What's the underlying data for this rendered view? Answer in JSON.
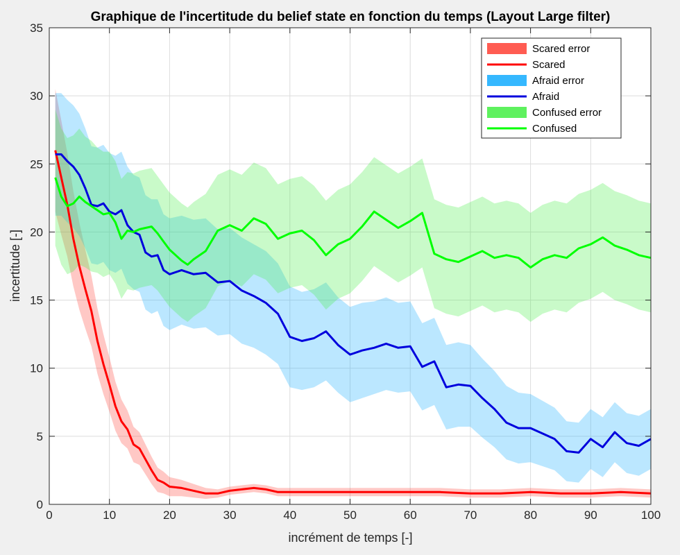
{
  "chart_data": {
    "type": "line",
    "title": "Graphique de l'incertitude du belief state en fonction du temps (Layout Large filter)",
    "xlabel": "incrément de temps [-]",
    "ylabel": "incertitude [-]",
    "xlim": [
      0,
      100
    ],
    "ylim": [
      0,
      35
    ],
    "xticks": [
      "0",
      "10",
      "20",
      "30",
      "40",
      "50",
      "60",
      "70",
      "80",
      "90",
      "100"
    ],
    "yticks": [
      "0",
      "5",
      "10",
      "15",
      "20",
      "25",
      "30",
      "35"
    ],
    "grid": true,
    "legend_position": "top-right",
    "legend": [
      "Scared error",
      "Scared",
      "Afraid error",
      "Afraid",
      "Confused error",
      "Confused"
    ],
    "series": [
      {
        "name": "Scared",
        "color": "#ff0000",
        "band_color": "#ff4a3f",
        "band_label": "Scared error",
        "x": [
          1,
          2,
          3,
          4,
          5,
          6,
          7,
          8,
          9,
          10,
          11,
          12,
          13,
          14,
          15,
          16,
          17,
          18,
          19,
          20,
          22,
          24,
          26,
          28,
          30,
          32,
          34,
          36,
          38,
          40,
          45,
          50,
          55,
          60,
          65,
          70,
          75,
          80,
          85,
          90,
          95,
          100
        ],
        "y": [
          26,
          24,
          22,
          19.5,
          17.5,
          15.8,
          14.2,
          12,
          10.3,
          8.8,
          7.2,
          6.1,
          5.5,
          4.4,
          4.1,
          3.3,
          2.5,
          1.8,
          1.6,
          1.3,
          1.2,
          1,
          0.8,
          0.8,
          1,
          1.1,
          1.2,
          1.1,
          0.9,
          0.9,
          0.9,
          0.9,
          0.9,
          0.9,
          0.9,
          0.8,
          0.8,
          0.9,
          0.8,
          0.8,
          0.9,
          0.8
        ],
        "err": [
          4.5,
          4.2,
          3.8,
          3.5,
          3.2,
          2.9,
          2.6,
          2.4,
          2.2,
          2,
          1.8,
          1.6,
          1.4,
          1.3,
          1.2,
          1.1,
          1,
          0.9,
          0.8,
          0.7,
          0.6,
          0.5,
          0.4,
          0.3,
          0.3,
          0.3,
          0.3,
          0.3,
          0.3,
          0.3,
          0.3,
          0.3,
          0.3,
          0.3,
          0.3,
          0.3,
          0.3,
          0.3,
          0.3,
          0.3,
          0.3,
          0.3
        ]
      },
      {
        "name": "Afraid",
        "color": "#0000dd",
        "band_color": "#1fb0ff",
        "band_label": "Afraid error",
        "x": [
          1,
          2,
          3,
          4,
          5,
          6,
          7,
          8,
          9,
          10,
          11,
          12,
          13,
          14,
          15,
          16,
          17,
          18,
          19,
          20,
          22,
          24,
          26,
          28,
          30,
          32,
          34,
          36,
          38,
          40,
          42,
          44,
          46,
          48,
          50,
          52,
          54,
          56,
          58,
          60,
          62,
          64,
          66,
          68,
          70,
          72,
          74,
          76,
          78,
          80,
          82,
          84,
          86,
          88,
          90,
          92,
          94,
          96,
          98,
          100
        ],
        "y": [
          25.7,
          25.7,
          25.2,
          24.8,
          24.2,
          23.2,
          22,
          21.9,
          22.1,
          21.5,
          21.3,
          21.6,
          20.5,
          20,
          19.8,
          18.5,
          18.2,
          18.3,
          17.2,
          16.9,
          17.2,
          16.9,
          17,
          16.3,
          16.4,
          15.7,
          15.3,
          14.8,
          14,
          12.3,
          12,
          12.2,
          12.7,
          11.7,
          11,
          11.3,
          11.5,
          11.8,
          11.5,
          11.6,
          10.1,
          10.5,
          8.6,
          8.8,
          8.7,
          7.8,
          7,
          6,
          5.6,
          5.6,
          5.2,
          4.8,
          3.9,
          3.8,
          4.8,
          4.2,
          5.3,
          4.5,
          4.3,
          4.8
        ],
        "err": [
          4.5,
          4.5,
          4.5,
          4.5,
          4.5,
          4.4,
          4.3,
          4.3,
          4.3,
          4.3,
          4.3,
          4.3,
          4.3,
          4.2,
          4.2,
          4.2,
          4.2,
          4.1,
          4.1,
          4.1,
          4,
          4,
          4,
          3.9,
          3.9,
          3.9,
          3.8,
          3.8,
          3.7,
          3.7,
          3.6,
          3.6,
          3.6,
          3.5,
          3.5,
          3.5,
          3.4,
          3.4,
          3.3,
          3.3,
          3.2,
          3.2,
          3.1,
          3.1,
          3,
          2.9,
          2.8,
          2.7,
          2.6,
          2.5,
          2.4,
          2.3,
          2.2,
          2.2,
          2.2,
          2.2,
          2.2,
          2.2,
          2.2,
          2.2
        ]
      },
      {
        "name": "Confused",
        "color": "#00ff00",
        "band_color": "#4df04d",
        "band_label": "Confused error",
        "x": [
          1,
          2,
          3,
          4,
          5,
          6,
          7,
          8,
          9,
          10,
          11,
          12,
          13,
          14,
          15,
          16,
          17,
          18,
          19,
          20,
          22,
          23,
          24,
          26,
          28,
          30,
          32,
          34,
          36,
          38,
          40,
          42,
          44,
          46,
          48,
          50,
          52,
          54,
          56,
          58,
          60,
          62,
          64,
          66,
          68,
          70,
          72,
          74,
          76,
          78,
          80,
          82,
          84,
          86,
          88,
          90,
          92,
          94,
          96,
          98,
          100
        ],
        "y": [
          24,
          22.6,
          21.9,
          22.1,
          22.6,
          22.2,
          21.9,
          21.6,
          21.3,
          21.4,
          20.7,
          19.5,
          20.1,
          20,
          20.2,
          20.3,
          20.4,
          19.9,
          19.3,
          18.7,
          17.9,
          17.6,
          18,
          18.6,
          20.1,
          20.5,
          20.1,
          21,
          20.6,
          19.5,
          19.9,
          20.1,
          19.4,
          18.3,
          19.1,
          19.5,
          20.4,
          21.5,
          20.9,
          20.3,
          20.8,
          21.4,
          18.4,
          18,
          17.8,
          18.2,
          18.6,
          18.1,
          18.3,
          18.1,
          17.4,
          18,
          18.3,
          18.1,
          18.8,
          19.1,
          19.6,
          19,
          18.7,
          18.3,
          18.1
        ],
        "err": [
          5,
          5,
          5,
          5,
          5,
          4.8,
          4.8,
          4.6,
          4.6,
          4.5,
          4.5,
          4.4,
          4.3,
          4.3,
          4.3,
          4.3,
          4.3,
          4.2,
          4.2,
          4.2,
          4.2,
          4.2,
          4.2,
          4.2,
          4.1,
          4.1,
          4.1,
          4.1,
          4.1,
          4,
          4,
          4,
          4,
          4,
          4,
          4,
          4,
          4,
          4,
          4,
          4,
          4,
          4,
          4,
          4,
          4,
          4,
          4,
          4,
          4,
          4,
          4,
          4,
          4,
          4,
          4,
          4,
          4,
          4,
          4,
          4
        ]
      }
    ]
  }
}
